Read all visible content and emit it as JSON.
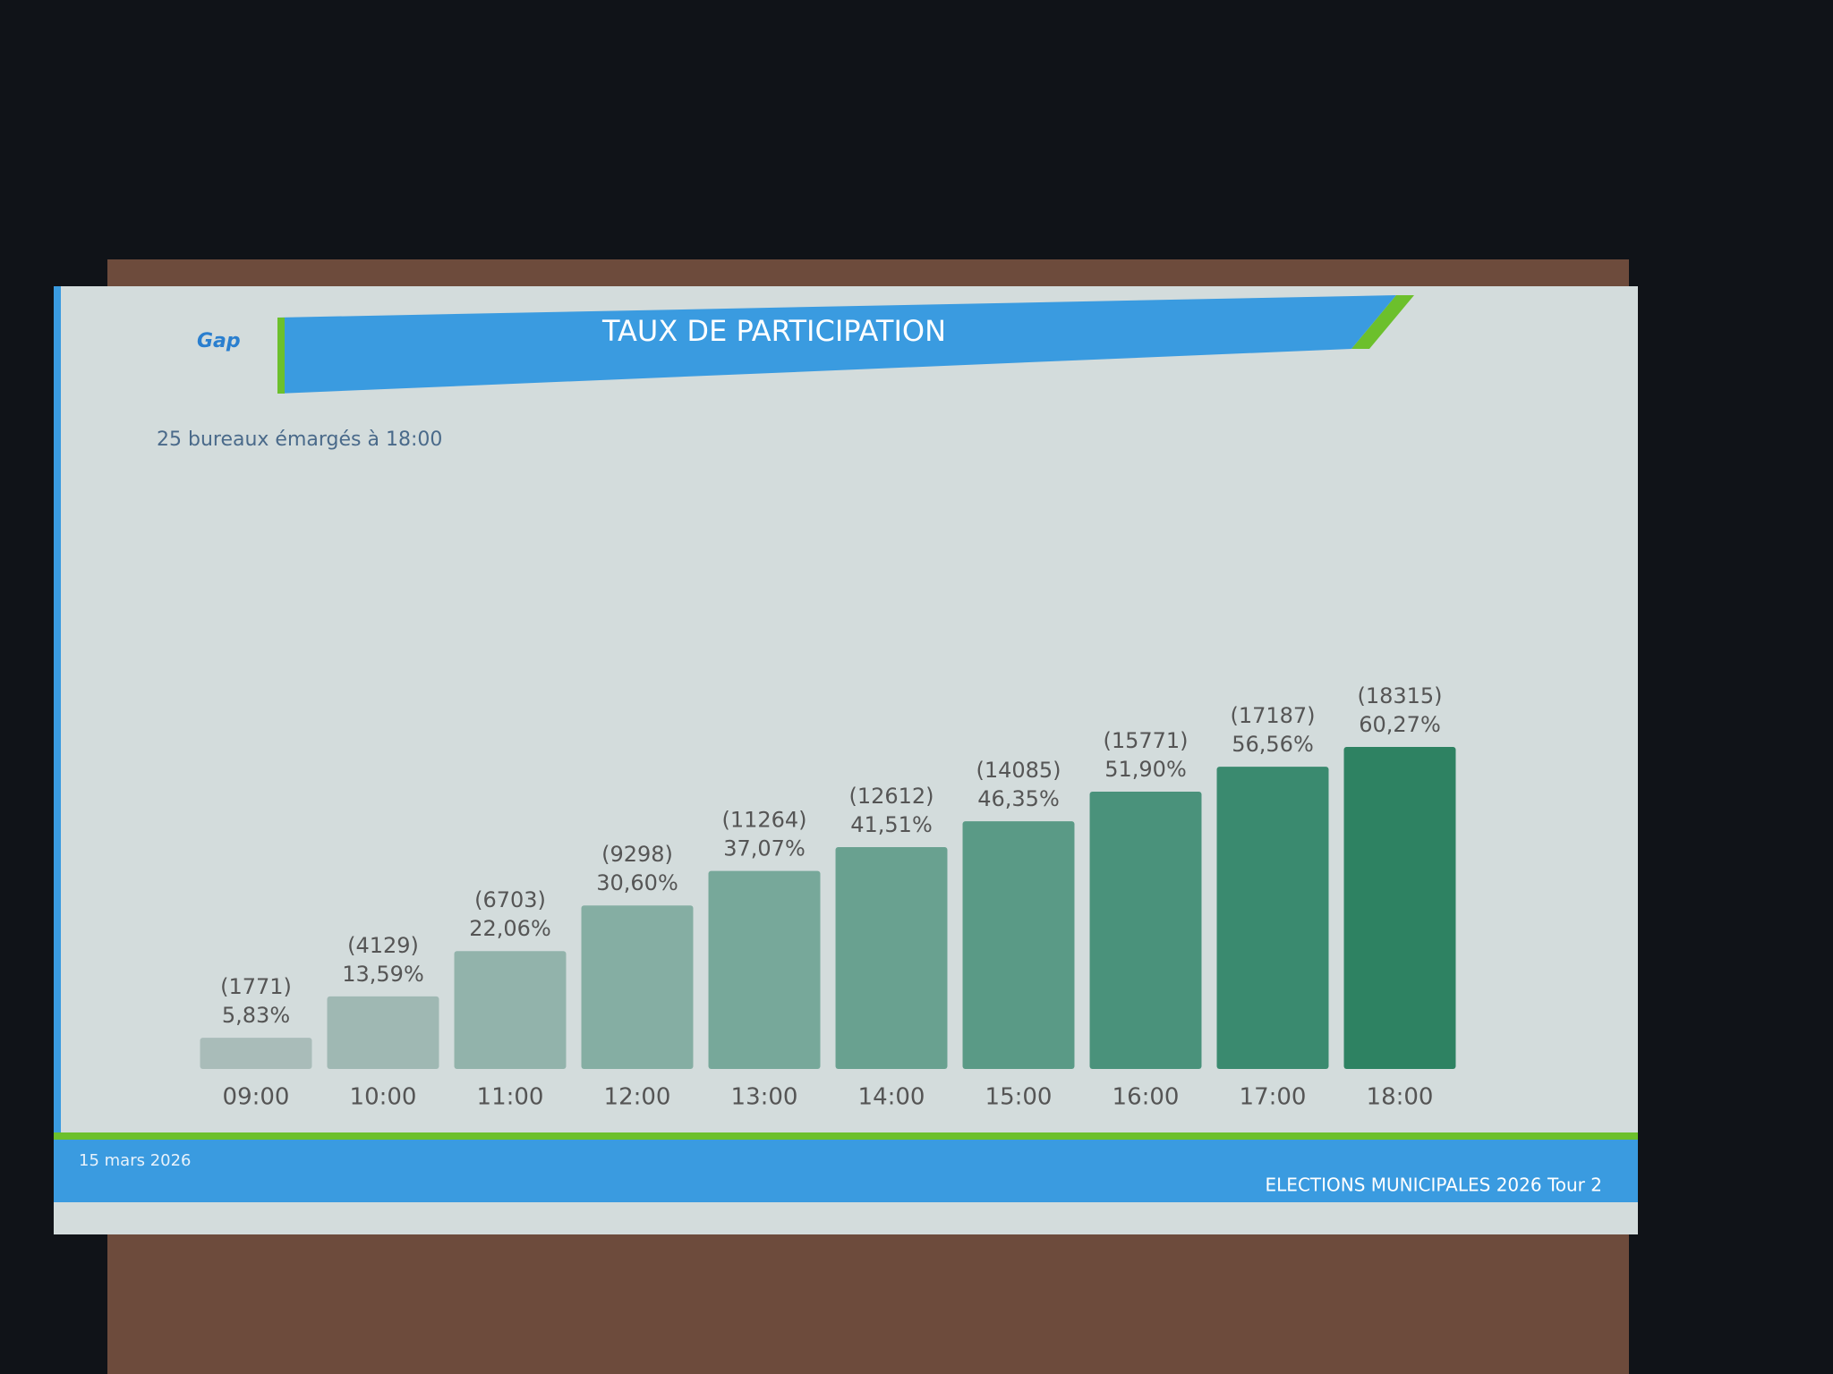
{
  "logo": "Gap",
  "footer": {
    "date": "15 mars 2026",
    "event": "ELECTIONS MUNICIPALES 2026 Tour 2"
  },
  "chart_data": {
    "type": "bar",
    "title": "TAUX DE PARTICIPATION",
    "subtitle": "25 bureaux émargés à 18:00",
    "categories": [
      "09:00",
      "10:00",
      "11:00",
      "12:00",
      "13:00",
      "14:00",
      "15:00",
      "16:00",
      "17:00",
      "18:00"
    ],
    "values": [
      5.83,
      13.59,
      22.06,
      30.6,
      37.07,
      41.51,
      46.35,
      51.9,
      56.56,
      60.27
    ],
    "value_labels": [
      "5,83%",
      "13,59%",
      "22,06%",
      "30,60%",
      "37,07%",
      "41,51%",
      "46,35%",
      "51,90%",
      "56,56%",
      "60,27%"
    ],
    "count_labels": [
      "(1771)",
      "(4129)",
      "(6703)",
      "(9298)",
      "(11264)",
      "(12612)",
      "(14085)",
      "(15771)",
      "(17187)",
      "(18315)"
    ],
    "colors": [
      "#a9bcb9",
      "#9fb8b3",
      "#92b3ab",
      "#85aea3",
      "#77a89a",
      "#69a190",
      "#5a9a86",
      "#4a927b",
      "#3a8a6f",
      "#2e8262"
    ]
  }
}
